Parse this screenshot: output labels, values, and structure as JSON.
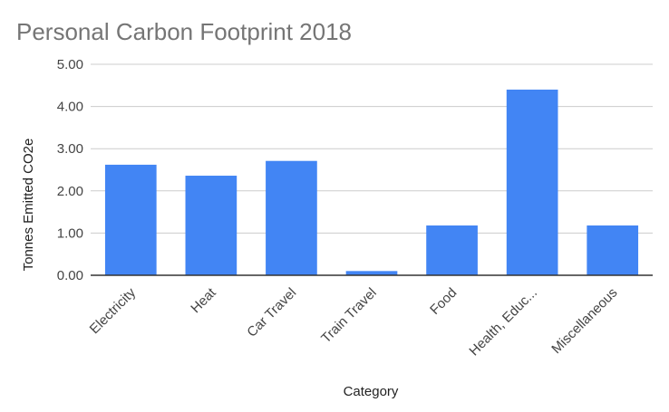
{
  "chart_data": {
    "type": "bar",
    "title": "Personal Carbon Footprint 2018",
    "xlabel": "Category",
    "ylabel": "Tonnes Emitted CO2e",
    "categories": [
      "Electricity",
      "Heat",
      "Car Travel",
      "Train Travel",
      "Food",
      "Health, Educ...",
      "Miscellaneous"
    ],
    "values": [
      2.62,
      2.36,
      2.71,
      0.1,
      1.18,
      4.4,
      1.18
    ],
    "ylim": [
      0,
      5
    ],
    "yticks": [
      "0.00",
      "1.00",
      "2.00",
      "3.00",
      "4.00",
      "5.00"
    ],
    "grid": true,
    "legend": "none",
    "bar_color": "#4285F4",
    "grid_color": "#cccccc",
    "axis_color": "#333333"
  }
}
